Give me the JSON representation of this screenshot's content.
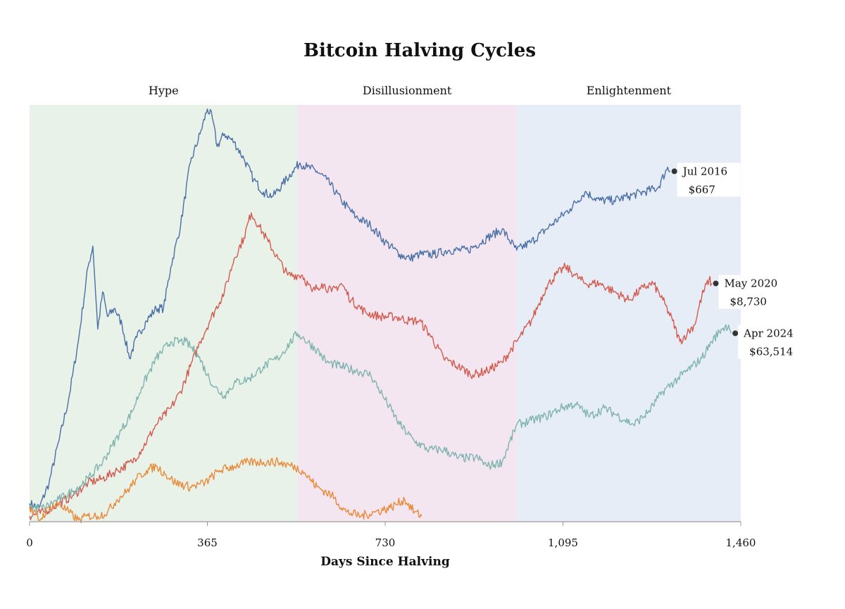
{
  "chart_data": {
    "type": "line",
    "title": "Bitcoin Halving Cycles",
    "xlabel": "Days Since Halving",
    "ylabel": "",
    "xlim": [
      0,
      1460
    ],
    "x_ticks": [
      0,
      365,
      730,
      1095,
      1460
    ],
    "x_tick_labels": [
      "0",
      "365",
      "730",
      "1,095",
      "1,460"
    ],
    "y_scale": "relative (no y axis shown)",
    "grid": false,
    "legend": "none",
    "phases": [
      {
        "label": "Hype",
        "x_start": 0,
        "x_end": 550,
        "color": "#e9f2e8"
      },
      {
        "label": "Disillusionment",
        "x_start": 550,
        "x_end": 1000,
        "color": "#f3e6f0"
      },
      {
        "label": "Enlightenment",
        "x_start": 1000,
        "x_end": 1460,
        "color": "#e7edf6"
      }
    ],
    "series": [
      {
        "color": "#4a6fa5",
        "end_label": "Jul 2016",
        "end_value": "$667",
        "points": [
          [
            0,
            0.03
          ],
          [
            20,
            0.02
          ],
          [
            40,
            0.08
          ],
          [
            60,
            0.18
          ],
          [
            80,
            0.28
          ],
          [
            100,
            0.42
          ],
          [
            120,
            0.6
          ],
          [
            130,
            0.65
          ],
          [
            140,
            0.45
          ],
          [
            150,
            0.54
          ],
          [
            160,
            0.48
          ],
          [
            175,
            0.5
          ],
          [
            190,
            0.46
          ],
          [
            205,
            0.38
          ],
          [
            220,
            0.43
          ],
          [
            240,
            0.47
          ],
          [
            260,
            0.5
          ],
          [
            275,
            0.5
          ],
          [
            290,
            0.6
          ],
          [
            310,
            0.7
          ],
          [
            330,
            0.85
          ],
          [
            350,
            0.92
          ],
          [
            365,
            0.98
          ],
          [
            375,
            0.96
          ],
          [
            385,
            0.89
          ],
          [
            400,
            0.92
          ],
          [
            420,
            0.9
          ],
          [
            440,
            0.86
          ],
          [
            460,
            0.81
          ],
          [
            480,
            0.78
          ],
          [
            500,
            0.77
          ],
          [
            520,
            0.8
          ],
          [
            540,
            0.83
          ],
          [
            555,
            0.85
          ],
          [
            570,
            0.84
          ],
          [
            590,
            0.83
          ],
          [
            610,
            0.81
          ],
          [
            640,
            0.76
          ],
          [
            670,
            0.72
          ],
          [
            700,
            0.7
          ],
          [
            730,
            0.66
          ],
          [
            760,
            0.63
          ],
          [
            780,
            0.62
          ],
          [
            800,
            0.63
          ],
          [
            830,
            0.63
          ],
          [
            860,
            0.64
          ],
          [
            900,
            0.64
          ],
          [
            940,
            0.67
          ],
          [
            970,
            0.69
          ],
          [
            1000,
            0.64
          ],
          [
            1030,
            0.66
          ],
          [
            1060,
            0.69
          ],
          [
            1090,
            0.72
          ],
          [
            1110,
            0.74
          ],
          [
            1140,
            0.78
          ],
          [
            1170,
            0.76
          ],
          [
            1200,
            0.76
          ],
          [
            1230,
            0.77
          ],
          [
            1260,
            0.78
          ],
          [
            1290,
            0.79
          ],
          [
            1310,
            0.84
          ],
          [
            1315,
            0.83
          ]
        ]
      },
      {
        "color": "#d25b4f",
        "end_label": "May 2020",
        "end_value": "$8,730",
        "points": [
          [
            0,
            0.0
          ],
          [
            30,
            0.01
          ],
          [
            60,
            0.03
          ],
          [
            90,
            0.05
          ],
          [
            120,
            0.08
          ],
          [
            150,
            0.09
          ],
          [
            180,
            0.11
          ],
          [
            210,
            0.13
          ],
          [
            230,
            0.16
          ],
          [
            260,
            0.22
          ],
          [
            290,
            0.26
          ],
          [
            310,
            0.3
          ],
          [
            330,
            0.36
          ],
          [
            350,
            0.42
          ],
          [
            370,
            0.47
          ],
          [
            400,
            0.54
          ],
          [
            420,
            0.62
          ],
          [
            440,
            0.67
          ],
          [
            455,
            0.73
          ],
          [
            470,
            0.7
          ],
          [
            490,
            0.66
          ],
          [
            510,
            0.62
          ],
          [
            530,
            0.58
          ],
          [
            560,
            0.58
          ],
          [
            580,
            0.54
          ],
          [
            600,
            0.56
          ],
          [
            620,
            0.54
          ],
          [
            640,
            0.56
          ],
          [
            660,
            0.52
          ],
          [
            690,
            0.49
          ],
          [
            720,
            0.48
          ],
          [
            750,
            0.48
          ],
          [
            780,
            0.47
          ],
          [
            800,
            0.47
          ],
          [
            820,
            0.44
          ],
          [
            850,
            0.38
          ],
          [
            880,
            0.36
          ],
          [
            910,
            0.34
          ],
          [
            940,
            0.35
          ],
          [
            970,
            0.37
          ],
          [
            1000,
            0.42
          ],
          [
            1030,
            0.47
          ],
          [
            1060,
            0.55
          ],
          [
            1080,
            0.58
          ],
          [
            1100,
            0.6
          ],
          [
            1120,
            0.58
          ],
          [
            1140,
            0.56
          ],
          [
            1170,
            0.56
          ],
          [
            1200,
            0.54
          ],
          [
            1230,
            0.52
          ],
          [
            1260,
            0.55
          ],
          [
            1280,
            0.56
          ],
          [
            1300,
            0.52
          ],
          [
            1320,
            0.47
          ],
          [
            1335,
            0.42
          ],
          [
            1350,
            0.44
          ],
          [
            1365,
            0.46
          ],
          [
            1380,
            0.53
          ],
          [
            1395,
            0.57
          ],
          [
            1400,
            0.56
          ]
        ]
      },
      {
        "color": "#7fb3b0",
        "end_label": "Apr 2024",
        "end_value": "$63,514",
        "points": [
          [
            0,
            0.02
          ],
          [
            30,
            0.02
          ],
          [
            60,
            0.04
          ],
          [
            90,
            0.06
          ],
          [
            120,
            0.09
          ],
          [
            150,
            0.13
          ],
          [
            170,
            0.17
          ],
          [
            190,
            0.21
          ],
          [
            210,
            0.25
          ],
          [
            230,
            0.31
          ],
          [
            260,
            0.38
          ],
          [
            290,
            0.42
          ],
          [
            320,
            0.42
          ],
          [
            345,
            0.39
          ],
          [
            365,
            0.34
          ],
          [
            380,
            0.31
          ],
          [
            400,
            0.29
          ],
          [
            420,
            0.32
          ],
          [
            450,
            0.33
          ],
          [
            480,
            0.36
          ],
          [
            510,
            0.38
          ],
          [
            550,
            0.44
          ],
          [
            560,
            0.43
          ],
          [
            590,
            0.4
          ],
          [
            610,
            0.37
          ],
          [
            640,
            0.36
          ],
          [
            670,
            0.35
          ],
          [
            700,
            0.34
          ],
          [
            730,
            0.28
          ],
          [
            760,
            0.22
          ],
          [
            790,
            0.18
          ],
          [
            820,
            0.16
          ],
          [
            850,
            0.16
          ],
          [
            880,
            0.14
          ],
          [
            900,
            0.14
          ],
          [
            920,
            0.14
          ],
          [
            940,
            0.12
          ],
          [
            970,
            0.13
          ],
          [
            1000,
            0.22
          ],
          [
            1030,
            0.23
          ],
          [
            1060,
            0.24
          ],
          [
            1090,
            0.26
          ],
          [
            1120,
            0.27
          ],
          [
            1150,
            0.24
          ],
          [
            1180,
            0.26
          ],
          [
            1210,
            0.24
          ],
          [
            1240,
            0.22
          ],
          [
            1270,
            0.25
          ],
          [
            1300,
            0.3
          ],
          [
            1330,
            0.33
          ],
          [
            1360,
            0.36
          ],
          [
            1380,
            0.38
          ],
          [
            1400,
            0.42
          ],
          [
            1420,
            0.45
          ],
          [
            1435,
            0.46
          ],
          [
            1440,
            0.44
          ]
        ]
      },
      {
        "color": "#e88a3a",
        "end_label": "",
        "end_value": "",
        "points": [
          [
            0,
            0.02
          ],
          [
            20,
            -0.01
          ],
          [
            40,
            0.02
          ],
          [
            60,
            0.03
          ],
          [
            80,
            0.01
          ],
          [
            100,
            -0.01
          ],
          [
            120,
            0.0
          ],
          [
            140,
            0.0
          ],
          [
            160,
            0.01
          ],
          [
            180,
            0.04
          ],
          [
            200,
            0.06
          ],
          [
            220,
            0.09
          ],
          [
            240,
            0.11
          ],
          [
            260,
            0.12
          ],
          [
            280,
            0.1
          ],
          [
            300,
            0.08
          ],
          [
            330,
            0.07
          ],
          [
            360,
            0.08
          ],
          [
            390,
            0.11
          ],
          [
            420,
            0.12
          ],
          [
            450,
            0.13
          ],
          [
            480,
            0.13
          ],
          [
            510,
            0.13
          ],
          [
            540,
            0.12
          ],
          [
            560,
            0.11
          ],
          [
            590,
            0.07
          ],
          [
            620,
            0.05
          ],
          [
            650,
            0.01
          ],
          [
            680,
            0.0
          ],
          [
            710,
            0.01
          ],
          [
            740,
            0.02
          ],
          [
            770,
            0.04
          ],
          [
            790,
            0.01
          ],
          [
            805,
            0.0
          ]
        ]
      }
    ]
  }
}
